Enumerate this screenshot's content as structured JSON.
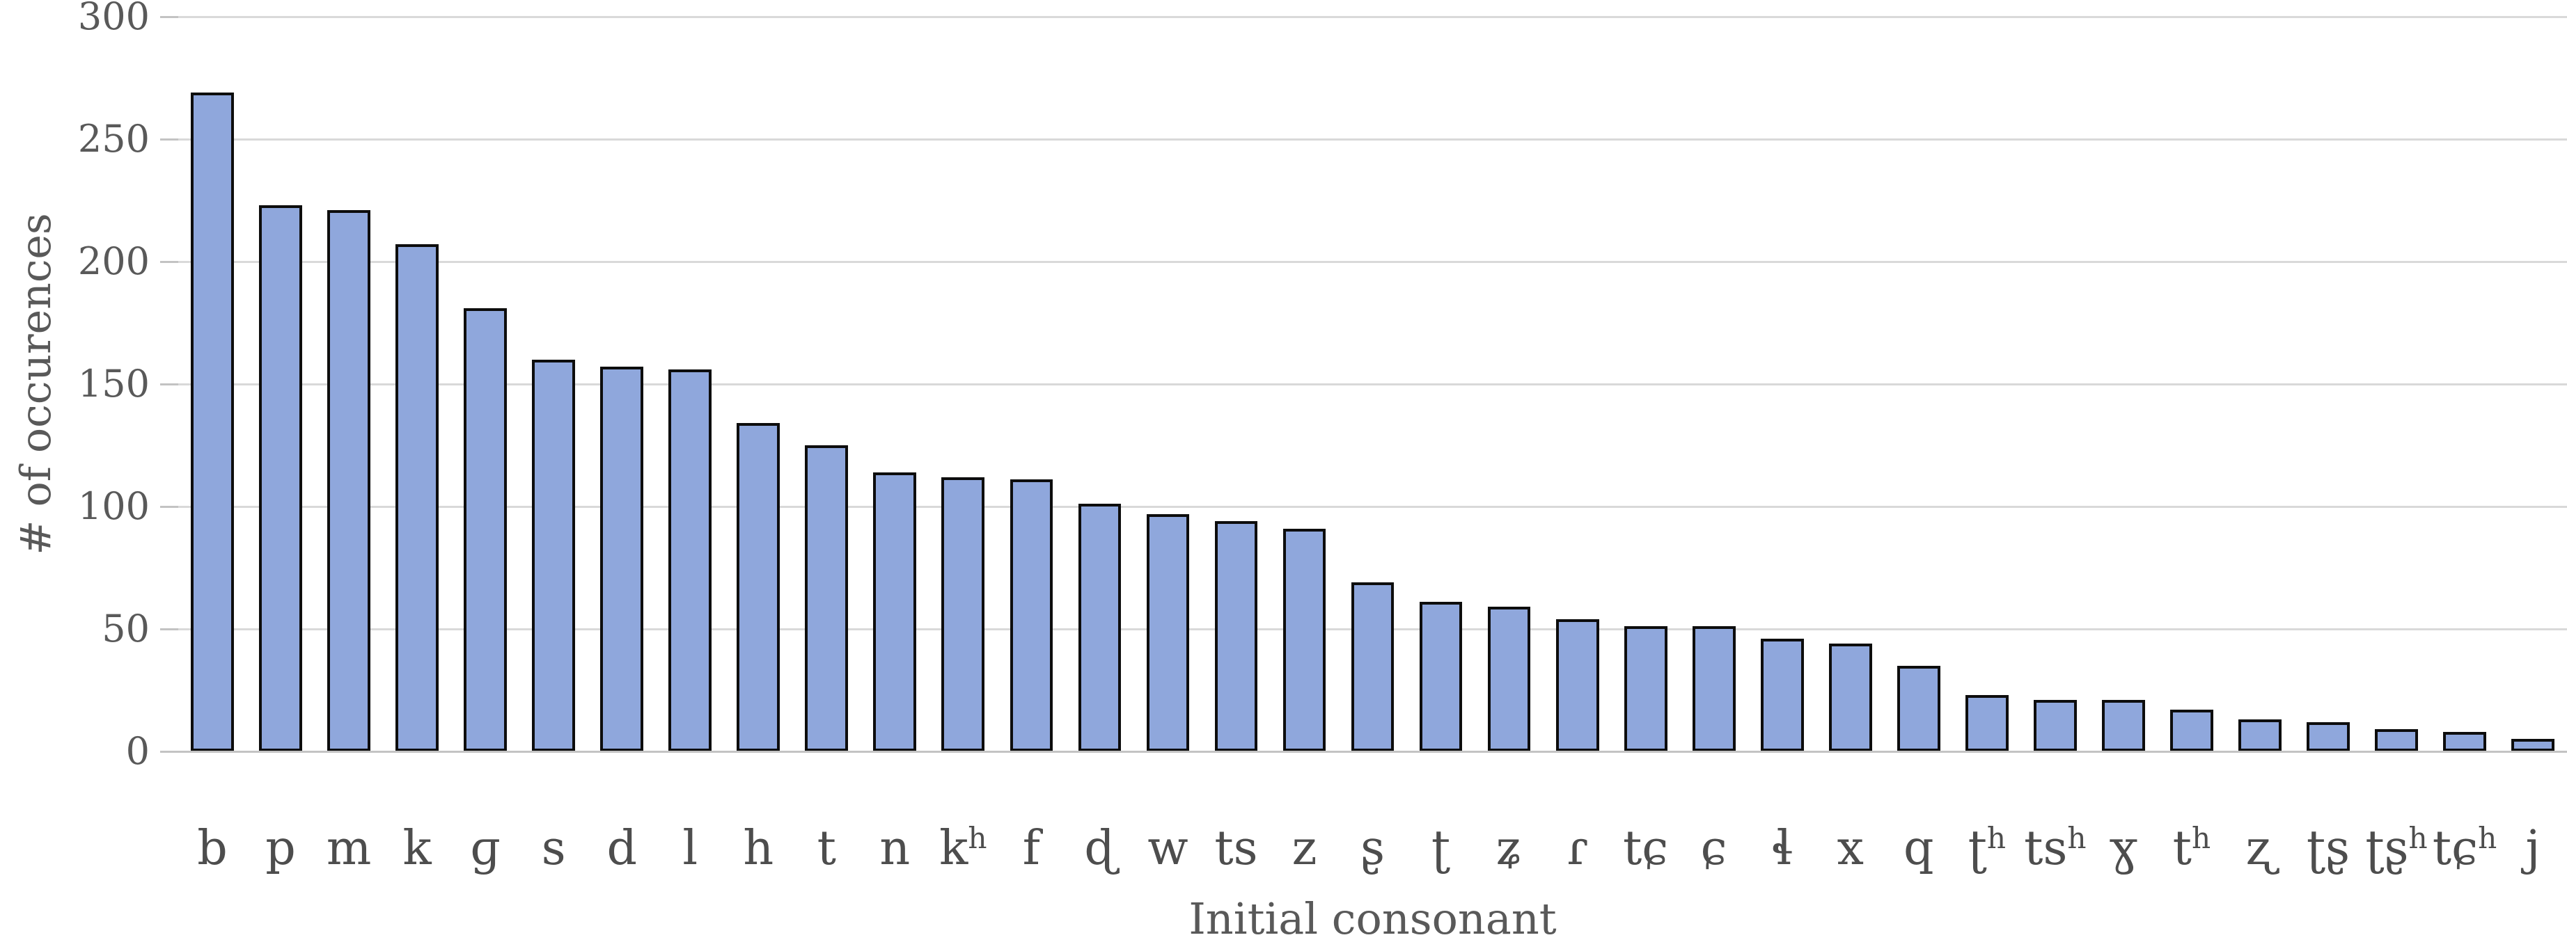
{
  "chart_data": {
    "type": "bar",
    "title": "",
    "xlabel": "Initial consonant",
    "ylabel": "# of occurences",
    "categories": [
      "b",
      "p",
      "m",
      "k",
      "ɡ",
      "s",
      "d",
      "l",
      "h",
      "t",
      "n",
      "kʰ",
      "f",
      "ɖ",
      "w",
      "ts",
      "z",
      "ʂ",
      "ʈ",
      "ʑ",
      "ɾ",
      "tɕ",
      "ɕ",
      "ɬ",
      "x",
      "q",
      "ʈʰ",
      "tsʰ",
      "ɣ",
      "tʰ",
      "ʐ",
      "ʈʂ",
      "ʈʂʰ",
      "tɕʰ",
      "j"
    ],
    "values": [
      269,
      223,
      221,
      207,
      181,
      160,
      157,
      156,
      134,
      125,
      114,
      112,
      111,
      101,
      97,
      94,
      91,
      69,
      61,
      59,
      54,
      51,
      51,
      46,
      44,
      35,
      23,
      21,
      21,
      17,
      13,
      12,
      9,
      8,
      5
    ],
    "ylim": [
      0,
      300
    ],
    "yticks": [
      0,
      50,
      100,
      150,
      200,
      250,
      300
    ],
    "grid": true,
    "legend": "none",
    "colors": {
      "bar_fill": "#8fa7dc",
      "bar_border": "#0d0d0d",
      "gridline": "#d9d9d9",
      "axis_line": "#c3c3c3",
      "text": "#595959"
    }
  }
}
